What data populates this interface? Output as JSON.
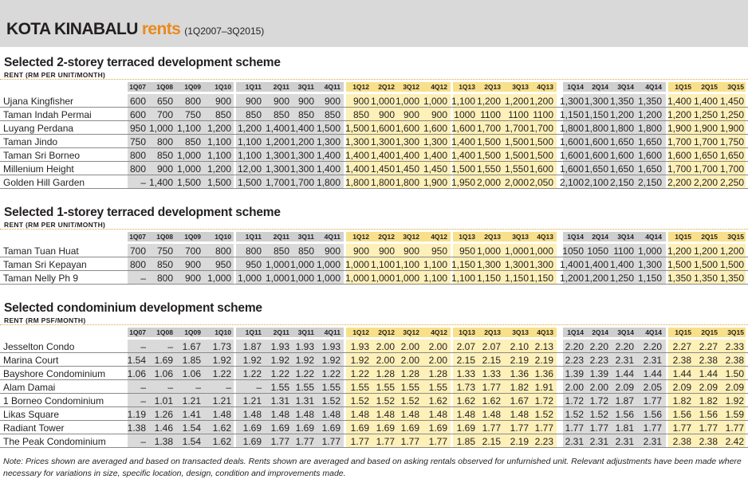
{
  "title": {
    "main": "KOTA KINABALU",
    "accent": "rents",
    "range": "(1Q2007–3Q2015)"
  },
  "colors": {
    "accent": "#ea8a1b",
    "title_bg": "#d9d9d9",
    "band_gray": "#dadadb",
    "band_yellow": "#fdf0b8",
    "band_gray_header": "#cfcfd0",
    "band_yellow_header": "#f8e08a"
  },
  "quarters": [
    "1Q07",
    "1Q08",
    "1Q09",
    "1Q10",
    "1Q11",
    "2Q11",
    "3Q11",
    "4Q11",
    "1Q12",
    "2Q12",
    "3Q12",
    "4Q12",
    "1Q13",
    "2Q13",
    "3Q13",
    "4Q13",
    "1Q14",
    "2Q14",
    "3Q14",
    "4Q14",
    "1Q15",
    "2Q15",
    "3Q15"
  ],
  "sections": [
    {
      "title": "Selected 2-storey terraced development scheme",
      "unit": "RENT (RM PER UNIT/MONTH)",
      "rows": [
        {
          "name": "Ujana Kingfisher",
          "values": [
            "600",
            "650",
            "800",
            "900",
            "900",
            "900",
            "900",
            "900",
            "900",
            "1,000",
            "1,000",
            "1,000",
            "1,100",
            "1,200",
            "1,200",
            "1,200",
            "1,300",
            "1,300",
            "1,350",
            "1,350",
            "1,400",
            "1,400",
            "1,450"
          ]
        },
        {
          "name": "Taman Indah Permai",
          "values": [
            "600",
            "700",
            "750",
            "850",
            "850",
            "850",
            "850",
            "850",
            "850",
            "900",
            "900",
            "900",
            "1000",
            "1100",
            "1100",
            "1100",
            "1,150",
            "1,150",
            "1,200",
            "1,200",
            "1,200",
            "1,250",
            "1,250"
          ]
        },
        {
          "name": "Luyang Perdana",
          "values": [
            "950",
            "1,000",
            "1,100",
            "1,200",
            "1,200",
            "1,400",
            "1,400",
            "1,500",
            "1,500",
            "1,600",
            "1,600",
            "1,600",
            "1,600",
            "1,700",
            "1,700",
            "1,700",
            "1,800",
            "1,800",
            "1,800",
            "1,800",
            "1,900",
            "1,900",
            "1,900"
          ]
        },
        {
          "name": "Taman Jindo",
          "values": [
            "750",
            "800",
            "850",
            "1,100",
            "1,100",
            "1,200",
            "1,200",
            "1,300",
            "1,300",
            "1,300",
            "1,300",
            "1,300",
            "1,400",
            "1,500",
            "1,500",
            "1,500",
            "1,600",
            "1,600",
            "1,650",
            "1,650",
            "1,700",
            "1,700",
            "1,750"
          ]
        },
        {
          "name": "Taman Sri Borneo",
          "values": [
            "800",
            "850",
            "1,000",
            "1,100",
            "1,100",
            "1,300",
            "1,300",
            "1,400",
            "1,400",
            "1,400",
            "1,400",
            "1,400",
            "1,400",
            "1,500",
            "1,500",
            "1,500",
            "1,600",
            "1,600",
            "1,600",
            "1,600",
            "1,600",
            "1,650",
            "1,650"
          ]
        },
        {
          "name": "Millenium Height",
          "values": [
            "800",
            "900",
            "1,000",
            "1,200",
            "12,00",
            "1,300",
            "1,300",
            "1,400",
            "1,400",
            "1,450",
            "1,450",
            "1,450",
            "1,500",
            "1,550",
            "1,550",
            "1,600",
            "1,600",
            "1,650",
            "1,650",
            "1,650",
            "1,700",
            "1,700",
            "1,700"
          ]
        },
        {
          "name": "Golden Hill Garden",
          "values": [
            "–",
            "1,400",
            "1,500",
            "1,500",
            "1,500",
            "1,700",
            "1,700",
            "1,800",
            "1,800",
            "1,800",
            "1,800",
            "1,900",
            "1,950",
            "2,000",
            "2,000",
            "2,050",
            "2,100",
            "2,100",
            "2,150",
            "2,150",
            "2,200",
            "2,200",
            "2,250"
          ]
        }
      ]
    },
    {
      "title": "Selected 1-storey terraced development scheme",
      "unit": "RENT (RM PER UNIT/MONTH)",
      "rows": [
        {
          "name": "Taman Tuan Huat",
          "values": [
            "700",
            "750",
            "700",
            "800",
            "800",
            "850",
            "850",
            "900",
            "900",
            "900",
            "900",
            "950",
            "950",
            "1,000",
            "1,000",
            "1,000",
            "1050",
            "1050",
            "1100",
            "1,000",
            "1,200",
            "1,200",
            "1,200"
          ]
        },
        {
          "name": "Taman Sri Kepayan",
          "values": [
            "800",
            "850",
            "900",
            "950",
            "950",
            "1,000",
            "1,000",
            "1,000",
            "1,000",
            "1,100",
            "1,100",
            "1,100",
            "1,150",
            "1,300",
            "1,300",
            "1,300",
            "1,400",
            "1,400",
            "1,400",
            "1,300",
            "1,500",
            "1,500",
            "1,500"
          ]
        },
        {
          "name": "Taman Nelly Ph 9",
          "values": [
            "–",
            "800",
            "900",
            "1,000",
            "1,000",
            "1,000",
            "1,000",
            "1,000",
            "1,000",
            "1,000",
            "1,000",
            "1,100",
            "1,100",
            "1,150",
            "1,150",
            "1,150",
            "1,200",
            "1,200",
            "1,250",
            "1,150",
            "1,350",
            "1,350",
            "1,350"
          ]
        }
      ]
    },
    {
      "title": "Selected condominium development scheme",
      "unit": "RENT (RM PSF/MONTH)",
      "rows": [
        {
          "name": "Jesselton Condo",
          "values": [
            "–",
            "–",
            "1.67",
            "1.73",
            "1.87",
            "1.93",
            "1.93",
            "1.93",
            "1.93",
            "2.00",
            "2.00",
            "2.00",
            "2.07",
            "2.07",
            "2.10",
            "2.13",
            "2.20",
            "2.20",
            "2.20",
            "2.20",
            "2.27",
            "2.27",
            "2.33"
          ]
        },
        {
          "name": "Marina Court",
          "values": [
            "1.54",
            "1.69",
            "1.85",
            "1.92",
            "1.92",
            "1.92",
            "1.92",
            "1.92",
            "1.92",
            "2.00",
            "2.00",
            "2.00",
            "2.15",
            "2.15",
            "2.19",
            "2.19",
            "2.23",
            "2.23",
            "2.31",
            "2.31",
            "2.38",
            "2.38",
            "2.38"
          ]
        },
        {
          "name": "Bayshore Condominium",
          "values": [
            "1.06",
            "1.06",
            "1.06",
            "1.22",
            "1.22",
            "1.22",
            "1.22",
            "1.22",
            "1.22",
            "1.28",
            "1.28",
            "1.28",
            "1.33",
            "1.33",
            "1.36",
            "1.36",
            "1.39",
            "1.39",
            "1.44",
            "1.44",
            "1.44",
            "1.44",
            "1.50"
          ]
        },
        {
          "name": "Alam Damai",
          "values": [
            "–",
            "–",
            "–",
            "–",
            "–",
            "1.55",
            "1.55",
            "1.55",
            "1.55",
            "1.55",
            "1.55",
            "1.55",
            "1.73",
            "1.77",
            "1.82",
            "1.91",
            "2.00",
            "2.00",
            "2.09",
            "2.05",
            "2.09",
            "2.09",
            "2.09"
          ]
        },
        {
          "name": "1 Borneo Condominium",
          "values": [
            "–",
            "1.01",
            "1.21",
            "1.21",
            "1.21",
            "1.31",
            "1.31",
            "1.52",
            "1.52",
            "1.52",
            "1.52",
            "1.62",
            "1.62",
            "1.62",
            "1.67",
            "1.72",
            "1.72",
            "1.72",
            "1.87",
            "1.77",
            "1.82",
            "1.82",
            "1.92"
          ]
        },
        {
          "name": "Likas Square",
          "values": [
            "1.19",
            "1.26",
            "1.41",
            "1.48",
            "1.48",
            "1.48",
            "1.48",
            "1.48",
            "1.48",
            "1.48",
            "1.48",
            "1.48",
            "1.48",
            "1.48",
            "1.48",
            "1.52",
            "1.52",
            "1.52",
            "1.56",
            "1.56",
            "1.56",
            "1.56",
            "1.59"
          ]
        },
        {
          "name": "Radiant Tower",
          "values": [
            "1.38",
            "1.46",
            "1.54",
            "1.62",
            "1.69",
            "1.69",
            "1.69",
            "1.69",
            "1.69",
            "1.69",
            "1.69",
            "1.69",
            "1.69",
            "1.77",
            "1.77",
            "1.77",
            "1.77",
            "1.77",
            "1.81",
            "1.77",
            "1.77",
            "1.77",
            "1.77"
          ]
        },
        {
          "name": "The Peak Condominium",
          "values": [
            "–",
            "1.38",
            "1.54",
            "1.62",
            "1.69",
            "1.77",
            "1.77",
            "1.77",
            "1.77",
            "1.77",
            "1.77",
            "1.77",
            "1.85",
            "2.15",
            "2.19",
            "2.23",
            "2.31",
            "2.31",
            "2.31",
            "2.31",
            "2.38",
            "2.38",
            "2.42"
          ]
        }
      ]
    }
  ],
  "note": "Note: Prices shown are averaged and based on transacted deals. Rents shown are averaged and based on asking rentals observed for unfurnished unit. Relevant adjustments have been made where necessary for variations in size, specific location, design, condition and improvements made."
}
